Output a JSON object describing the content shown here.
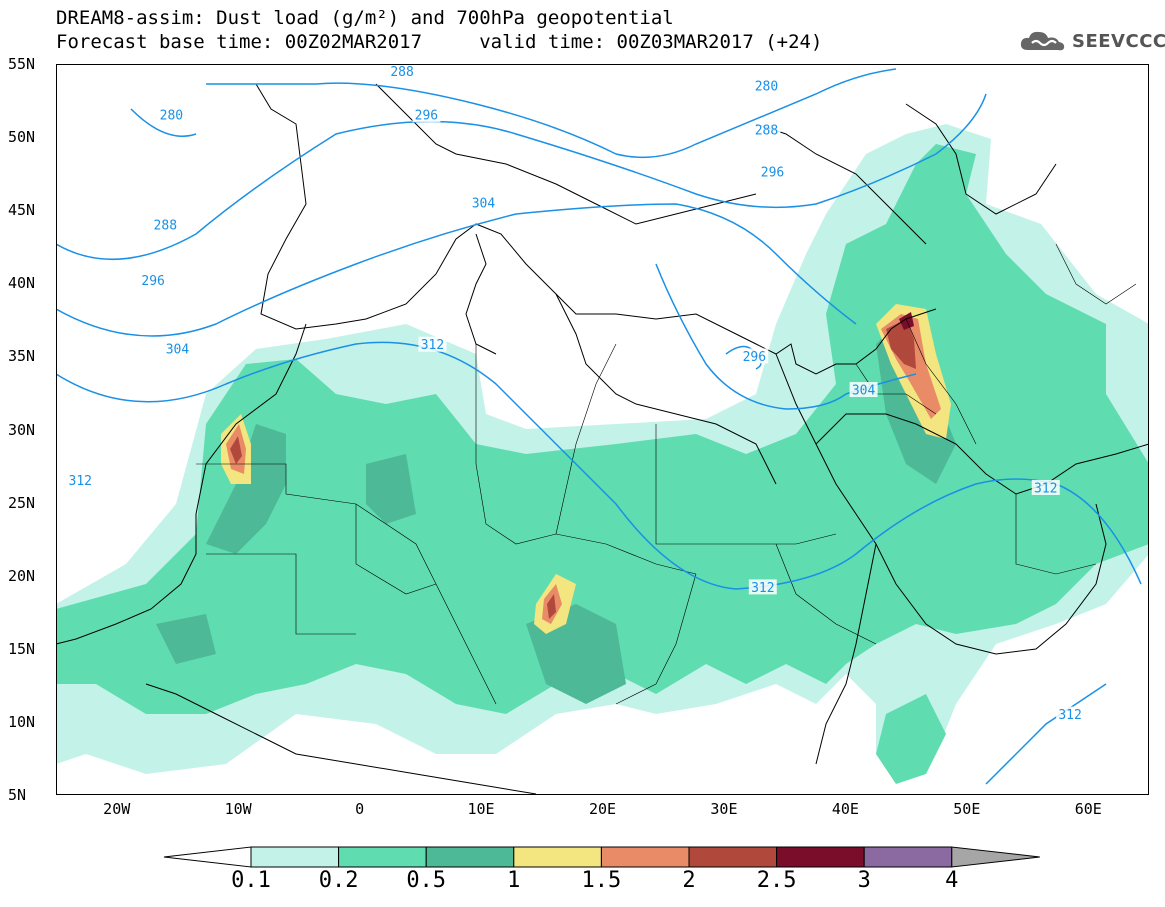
{
  "header": {
    "title_line1": "DREAM8-assim: Dust load (g/m²) and 700hPa geopotential",
    "title_line2": "Forecast base time: 00Z02MAR2017     valid time: 00Z03MAR2017 (+24)",
    "logo_text": "SEEVCCC"
  },
  "axes": {
    "lat_labels": [
      "55N",
      "50N",
      "45N",
      "40N",
      "35N",
      "30N",
      "25N",
      "20N",
      "15N",
      "10N",
      "5N"
    ],
    "lon_labels": [
      "20W",
      "10W",
      "0",
      "10E",
      "20E",
      "30E",
      "40E",
      "50E",
      "60E"
    ],
    "lon_range": [
      -25,
      65
    ],
    "lat_range": [
      5,
      55
    ]
  },
  "colorbar": {
    "labels": [
      "0.1",
      "0.2",
      "0.5",
      "1",
      "1.5",
      "2",
      "2.5",
      "3",
      "4"
    ],
    "colors": [
      "#c3f2e8",
      "#5fdcb0",
      "#4db996",
      "#f3e57f",
      "#e88b66",
      "#b0493c",
      "#7a0e2a",
      "#8a6aa0",
      "#a6a6a6"
    ]
  },
  "contour_labels": [
    {
      "text": "288",
      "lon": 3.5,
      "lat": 54.5
    },
    {
      "text": "280",
      "lon": -15.5,
      "lat": 51.5
    },
    {
      "text": "296",
      "lon": 5.5,
      "lat": 51.5
    },
    {
      "text": "288",
      "lon": -16,
      "lat": 44
    },
    {
      "text": "296",
      "lon": -17,
      "lat": 40.2
    },
    {
      "text": "304",
      "lon": -15,
      "lat": 35.5
    },
    {
      "text": "304",
      "lon": 10.2,
      "lat": 45.5
    },
    {
      "text": "312",
      "lon": 6,
      "lat": 35.8
    },
    {
      "text": "312",
      "lon": -23,
      "lat": 26.5
    },
    {
      "text": "280",
      "lon": 33.5,
      "lat": 53.5
    },
    {
      "text": "288",
      "lon": 33.5,
      "lat": 50.5
    },
    {
      "text": "296",
      "lon": 34,
      "lat": 47.6
    },
    {
      "text": "296",
      "lon": 32.5,
      "lat": 35
    },
    {
      "text": "304",
      "lon": 41.5,
      "lat": 32.7
    },
    {
      "text": "312",
      "lon": 56.5,
      "lat": 26
    },
    {
      "text": "312",
      "lon": 33.2,
      "lat": 19.2
    },
    {
      "text": "312",
      "lon": 58.5,
      "lat": 10.5
    }
  ],
  "dust_colors": {
    "c1": "#c3f2e8",
    "c2": "#5fdcb0",
    "c3": "#4db996",
    "c4": "#f3e57f",
    "c5": "#e88b66",
    "c6": "#b0493c",
    "c7": "#7a0e2a",
    "contour": "#1a90e6"
  }
}
